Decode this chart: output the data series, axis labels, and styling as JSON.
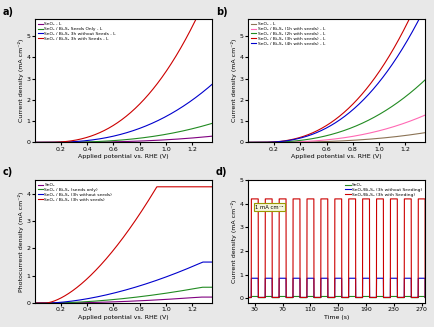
{
  "fig_width": 4.35,
  "fig_height": 3.27,
  "dpi": 100,
  "fig_facecolor": "#e8e8e8",
  "ax_facecolor": "#ffffff",
  "panel_a": {
    "label": "a)",
    "xlabel": "Applied potential vs. RHE (V)",
    "ylabel": "Current density (mA cm⁻²)",
    "xlim": [
      0.0,
      1.35
    ],
    "ylim": [
      0,
      5.8
    ],
    "yticks": [
      0,
      1,
      2,
      3,
      4,
      5
    ],
    "xticks": [
      0.2,
      0.4,
      0.6,
      0.8,
      1.0,
      1.2
    ],
    "curves": [
      {
        "onset": 0.05,
        "scale": 0.14,
        "power": 2.8,
        "color": "#800080",
        "lw": 0.8,
        "label": "SnO₂ - L"
      },
      {
        "onset": 0.1,
        "scale": 0.5,
        "power": 2.6,
        "color": "#228B22",
        "lw": 0.8,
        "label": "SnO₂ / Bi₂S₃ Seeds Only - L"
      },
      {
        "onset": 0.08,
        "scale": 1.5,
        "power": 2.5,
        "color": "#0000CD",
        "lw": 0.8,
        "label": "SnO₂ / Bi₂S₃ 3h without Seeds - L"
      },
      {
        "onset": 0.08,
        "scale": 4.1,
        "power": 2.5,
        "color": "#CC0000",
        "lw": 0.8,
        "label": "SnO₂ / Bi₂S₃ 3h with Seeds - L"
      }
    ]
  },
  "panel_b": {
    "label": "b)",
    "xlabel": "Applied potential vs. RHE (V)",
    "ylabel": "Current density (mA cm⁻²)",
    "xlim": [
      0.0,
      1.35
    ],
    "ylim": [
      0,
      5.8
    ],
    "yticks": [
      0,
      1,
      2,
      3,
      4,
      5
    ],
    "xticks": [
      0.2,
      0.4,
      0.6,
      0.8,
      1.0,
      1.2
    ],
    "curves": [
      {
        "onset": 0.05,
        "scale": 0.22,
        "power": 2.8,
        "color": "#8B7355",
        "lw": 0.8,
        "label": "SnO₂ - L"
      },
      {
        "onset": 0.1,
        "scale": 0.72,
        "power": 2.6,
        "color": "#FF69B4",
        "lw": 0.8,
        "label": "SnO₂ / Bi₂S₃ (1h with seeds) - L"
      },
      {
        "onset": 0.08,
        "scale": 1.62,
        "power": 2.5,
        "color": "#228B22",
        "lw": 0.8,
        "label": "SnO₂ / Bi₂S₃ (2h with seeds) - L"
      },
      {
        "onset": 0.08,
        "scale": 4.1,
        "power": 2.5,
        "color": "#CC0000",
        "lw": 0.8,
        "label": "SnO₂ / Bi₂S₃ (3h with seeds) - L"
      },
      {
        "onset": 0.08,
        "scale": 3.5,
        "power": 2.5,
        "color": "#0000CD",
        "lw": 0.8,
        "label": "SnO₂ / Bi₂S₃ (4h with seeds) - L"
      }
    ]
  },
  "panel_c": {
    "label": "c)",
    "xlabel": "Applied potential vs. RHE (V)",
    "ylabel": "Photocurrent density (mA cm⁻²)",
    "xlim": [
      0.0,
      1.35
    ],
    "ylim": [
      0,
      4.5
    ],
    "yticks": [
      0,
      1,
      2,
      3,
      4
    ],
    "xticks": [
      0.2,
      0.4,
      0.6,
      0.8,
      1.0,
      1.2
    ],
    "curves": [
      {
        "onset": 0.05,
        "scale": 0.15,
        "power": 2.0,
        "sat": 0.22,
        "color": "#800080",
        "lw": 0.8,
        "label": "SnO₂"
      },
      {
        "onset": 0.08,
        "scale": 0.42,
        "power": 1.8,
        "sat": 0.58,
        "color": "#228B22",
        "lw": 0.8,
        "label": "SnO₂ / Bi₂S₃ (seeds only)"
      },
      {
        "onset": 0.08,
        "scale": 1.1,
        "power": 1.7,
        "sat": 1.5,
        "color": "#0000CD",
        "lw": 0.8,
        "label": "SnO₂ / Bi₂S₃ (3h without seeds)"
      },
      {
        "onset": 0.08,
        "scale": 5.5,
        "power": 1.6,
        "sat": 4.25,
        "color": "#CC0000",
        "lw": 0.8,
        "label": "SnO₂ / Bi₂S₃ (3h with seeds)"
      }
    ]
  },
  "panel_d": {
    "label": "d)",
    "xlabel": "Time (s)",
    "ylabel": "Current density (mA cm⁻²)",
    "xlim": [
      20,
      275
    ],
    "ylim": [
      -0.2,
      5.0
    ],
    "xticks": [
      30,
      70,
      110,
      150,
      190,
      230,
      270
    ],
    "annotation": "1 mA cm⁻²",
    "t_start": 25,
    "period": 20,
    "half_period": 10,
    "lines": [
      {
        "on_val": 0.08,
        "off_val": 0.03,
        "color": "#228B22",
        "lw": 0.8,
        "label": "SnO₂"
      },
      {
        "on_val": 0.85,
        "off_val": 0.04,
        "color": "#0000CD",
        "lw": 0.8,
        "label": "SnO₂/Bi₂S₃ (3h without Seeding)"
      },
      {
        "on_val": 4.2,
        "off_val": 0.04,
        "color": "#CC0000",
        "lw": 0.8,
        "label": "SnO₂/Bi₂S₃ (3h with Seeding)"
      }
    ]
  }
}
